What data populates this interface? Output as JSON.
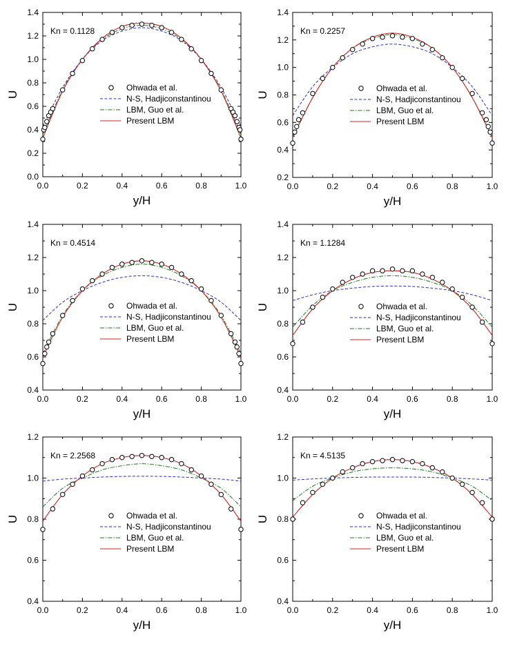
{
  "figure": {
    "legend_entries": [
      "Ohwada et al.",
      "N-S, Hadjiconstantinou",
      "LBM, Guo et al.",
      "Present LBM"
    ],
    "xlabel": "y/H",
    "ylabel": "U"
  },
  "colors": {
    "ohwada": "#000000",
    "ns": "#2a2ad0",
    "guo": "#1a7a1a",
    "present": "#d42020",
    "axis": "#000000"
  },
  "chart_data": [
    {
      "type": "line",
      "annotation": "Kn = 0.1128",
      "xlabel": "y/H",
      "ylabel": "U",
      "xlim": [
        0,
        1
      ],
      "ylim": [
        0,
        1.4
      ],
      "xticks": [
        "0.0",
        "0.2",
        "0.4",
        "0.6",
        "0.8",
        "1.0"
      ],
      "yticks": [
        "0.0",
        "0.2",
        "0.4",
        "0.6",
        "0.8",
        "1.0",
        "1.2",
        "1.4"
      ],
      "legend": "center",
      "grid": false,
      "series": [
        {
          "name": "Ohwada et al.",
          "style": "markers",
          "x": [
            0.0,
            0.005,
            0.01,
            0.02,
            0.03,
            0.04,
            0.05,
            0.1,
            0.15,
            0.2,
            0.25,
            0.3,
            0.35,
            0.4,
            0.45,
            0.5,
            0.55,
            0.6,
            0.65,
            0.7,
            0.75,
            0.8,
            0.85,
            0.9,
            0.95,
            0.96,
            0.97,
            0.98,
            0.99,
            0.995,
            1.0
          ],
          "y": [
            0.32,
            0.4,
            0.42,
            0.47,
            0.52,
            0.55,
            0.58,
            0.74,
            0.88,
            0.99,
            1.09,
            1.17,
            1.23,
            1.27,
            1.29,
            1.3,
            1.29,
            1.27,
            1.23,
            1.17,
            1.09,
            0.99,
            0.88,
            0.74,
            0.58,
            0.55,
            0.52,
            0.47,
            0.42,
            0.4,
            0.32
          ]
        },
        {
          "name": "N-S, Hadjiconstantinou",
          "style": "dashed",
          "x": [
            0.0,
            0.1,
            0.2,
            0.3,
            0.4,
            0.5,
            0.6,
            0.7,
            0.8,
            0.9,
            1.0
          ],
          "y": [
            0.43,
            0.76,
            1.0,
            1.16,
            1.24,
            1.27,
            1.24,
            1.16,
            1.0,
            0.76,
            0.43
          ]
        },
        {
          "name": "LBM, Guo et al.",
          "style": "dashdot",
          "x": [
            0.0,
            0.1,
            0.2,
            0.3,
            0.4,
            0.5,
            0.6,
            0.7,
            0.8,
            0.9,
            1.0
          ],
          "y": [
            0.36,
            0.74,
            1.0,
            1.17,
            1.26,
            1.29,
            1.26,
            1.17,
            1.0,
            0.74,
            0.36
          ]
        },
        {
          "name": "Present LBM",
          "style": "solid",
          "x": [
            0.0,
            0.1,
            0.2,
            0.3,
            0.4,
            0.5,
            0.6,
            0.7,
            0.8,
            0.9,
            1.0
          ],
          "y": [
            0.33,
            0.73,
            1.0,
            1.18,
            1.28,
            1.31,
            1.28,
            1.18,
            1.0,
            0.73,
            0.33
          ]
        }
      ]
    },
    {
      "type": "line",
      "annotation": "Kn = 0.2257",
      "xlabel": "y/H",
      "ylabel": "U",
      "xlim": [
        0,
        1
      ],
      "ylim": [
        0.2,
        1.4
      ],
      "xticks": [
        "0.0",
        "0.2",
        "0.4",
        "0.6",
        "0.8",
        "1.0"
      ],
      "yticks": [
        "0.2",
        "0.4",
        "0.6",
        "0.8",
        "1.0",
        "1.2",
        "1.4"
      ],
      "legend": "center",
      "grid": false,
      "series": [
        {
          "name": "Ohwada et al.",
          "style": "markers",
          "x": [
            0.0,
            0.01,
            0.02,
            0.03,
            0.05,
            0.1,
            0.15,
            0.2,
            0.25,
            0.3,
            0.35,
            0.4,
            0.45,
            0.5,
            0.55,
            0.6,
            0.65,
            0.7,
            0.75,
            0.8,
            0.85,
            0.9,
            0.95,
            0.97,
            0.98,
            0.99,
            1.0
          ],
          "y": [
            0.45,
            0.53,
            0.57,
            0.62,
            0.67,
            0.81,
            0.92,
            1.0,
            1.07,
            1.13,
            1.17,
            1.21,
            1.22,
            1.23,
            1.22,
            1.21,
            1.17,
            1.13,
            1.07,
            1.0,
            0.92,
            0.81,
            0.67,
            0.62,
            0.57,
            0.53,
            0.45
          ]
        },
        {
          "name": "N-S, Hadjiconstantinou",
          "style": "dashed",
          "x": [
            0.0,
            0.1,
            0.2,
            0.3,
            0.4,
            0.5,
            0.6,
            0.7,
            0.8,
            0.9,
            1.0
          ],
          "y": [
            0.65,
            0.86,
            1.0,
            1.1,
            1.15,
            1.17,
            1.15,
            1.1,
            1.0,
            0.86,
            0.65
          ]
        },
        {
          "name": "LBM, Guo et al.",
          "style": "dashdot",
          "x": [
            0.0,
            0.1,
            0.2,
            0.3,
            0.4,
            0.5,
            0.6,
            0.7,
            0.8,
            0.9,
            1.0
          ],
          "y": [
            0.5,
            0.78,
            1.0,
            1.14,
            1.21,
            1.24,
            1.21,
            1.14,
            1.0,
            0.78,
            0.5
          ]
        },
        {
          "name": "Present LBM",
          "style": "solid",
          "x": [
            0.0,
            0.1,
            0.2,
            0.3,
            0.4,
            0.5,
            0.6,
            0.7,
            0.8,
            0.9,
            1.0
          ],
          "y": [
            0.49,
            0.78,
            1.0,
            1.14,
            1.22,
            1.25,
            1.22,
            1.14,
            1.0,
            0.78,
            0.49
          ]
        }
      ]
    },
    {
      "type": "line",
      "annotation": "Kn = 0.4514",
      "xlabel": "y/H",
      "ylabel": "U",
      "xlim": [
        0,
        1
      ],
      "ylim": [
        0.4,
        1.4
      ],
      "xticks": [
        "0.0",
        "0.2",
        "0.4",
        "0.6",
        "0.8",
        "1.0"
      ],
      "yticks": [
        "0.4",
        "0.6",
        "0.8",
        "1.0",
        "1.2",
        "1.4"
      ],
      "legend": "center",
      "grid": false,
      "series": [
        {
          "name": "Ohwada et al.",
          "style": "markers",
          "x": [
            0.0,
            0.01,
            0.02,
            0.03,
            0.05,
            0.1,
            0.15,
            0.2,
            0.25,
            0.3,
            0.35,
            0.4,
            0.45,
            0.5,
            0.55,
            0.6,
            0.65,
            0.7,
            0.75,
            0.8,
            0.85,
            0.9,
            0.95,
            0.97,
            0.98,
            0.99,
            1.0
          ],
          "y": [
            0.56,
            0.62,
            0.66,
            0.69,
            0.74,
            0.85,
            0.94,
            1.01,
            1.06,
            1.1,
            1.14,
            1.16,
            1.17,
            1.18,
            1.17,
            1.16,
            1.14,
            1.1,
            1.06,
            1.01,
            0.94,
            0.85,
            0.74,
            0.69,
            0.66,
            0.62,
            0.56
          ]
        },
        {
          "name": "N-S, Hadjiconstantinou",
          "style": "dashed",
          "x": [
            0.0,
            0.1,
            0.2,
            0.3,
            0.4,
            0.5,
            0.6,
            0.7,
            0.8,
            0.9,
            1.0
          ],
          "y": [
            0.82,
            0.93,
            1.0,
            1.05,
            1.08,
            1.09,
            1.08,
            1.05,
            1.0,
            0.93,
            0.82
          ]
        },
        {
          "name": "LBM, Guo et al.",
          "style": "dashdot",
          "x": [
            0.0,
            0.1,
            0.2,
            0.3,
            0.4,
            0.5,
            0.6,
            0.7,
            0.8,
            0.9,
            1.0
          ],
          "y": [
            0.62,
            0.85,
            1.0,
            1.09,
            1.14,
            1.16,
            1.14,
            1.09,
            1.0,
            0.85,
            0.62
          ]
        },
        {
          "name": "Present LBM",
          "style": "solid",
          "x": [
            0.0,
            0.1,
            0.2,
            0.3,
            0.4,
            0.5,
            0.6,
            0.7,
            0.8,
            0.9,
            1.0
          ],
          "y": [
            0.6,
            0.84,
            1.0,
            1.1,
            1.16,
            1.18,
            1.16,
            1.1,
            1.0,
            0.84,
            0.6
          ]
        }
      ]
    },
    {
      "type": "line",
      "annotation": "Kn = 1.1284",
      "xlabel": "y/H",
      "ylabel": "U",
      "xlim": [
        0,
        1
      ],
      "ylim": [
        0.4,
        1.4
      ],
      "xticks": [
        "0.0",
        "0.2",
        "0.4",
        "0.6",
        "0.8",
        "1.0"
      ],
      "yticks": [
        "0.4",
        "0.6",
        "0.8",
        "1.0",
        "1.2",
        "1.4"
      ],
      "legend": "center",
      "grid": false,
      "series": [
        {
          "name": "Ohwada et al.",
          "style": "markers",
          "x": [
            0.0,
            0.05,
            0.1,
            0.15,
            0.2,
            0.25,
            0.3,
            0.35,
            0.4,
            0.45,
            0.5,
            0.55,
            0.6,
            0.65,
            0.7,
            0.75,
            0.8,
            0.85,
            0.9,
            0.95,
            1.0
          ],
          "y": [
            0.68,
            0.81,
            0.9,
            0.96,
            1.01,
            1.05,
            1.08,
            1.1,
            1.12,
            1.12,
            1.13,
            1.12,
            1.12,
            1.1,
            1.08,
            1.05,
            1.01,
            0.96,
            0.9,
            0.81,
            0.68
          ]
        },
        {
          "name": "N-S, Hadjiconstantinou",
          "style": "dashed",
          "x": [
            0.0,
            0.1,
            0.2,
            0.3,
            0.4,
            0.5,
            0.6,
            0.7,
            0.8,
            0.9,
            1.0
          ],
          "y": [
            0.94,
            0.975,
            1.0,
            1.015,
            1.025,
            1.028,
            1.025,
            1.015,
            1.0,
            0.975,
            0.94
          ]
        },
        {
          "name": "LBM, Guo et al.",
          "style": "dashdot",
          "x": [
            0.0,
            0.1,
            0.2,
            0.3,
            0.4,
            0.5,
            0.6,
            0.7,
            0.8,
            0.9,
            1.0
          ],
          "y": [
            0.78,
            0.91,
            1.0,
            1.05,
            1.08,
            1.09,
            1.08,
            1.05,
            1.0,
            0.91,
            0.78
          ]
        },
        {
          "name": "Present LBM",
          "style": "solid",
          "x": [
            0.0,
            0.1,
            0.2,
            0.3,
            0.4,
            0.5,
            0.6,
            0.7,
            0.8,
            0.9,
            1.0
          ],
          "y": [
            0.73,
            0.89,
            1.0,
            1.07,
            1.11,
            1.12,
            1.11,
            1.07,
            1.0,
            0.89,
            0.73
          ]
        }
      ]
    },
    {
      "type": "line",
      "annotation": "Kn = 2.2568",
      "xlabel": "y/H",
      "ylabel": "U",
      "xlim": [
        0,
        1
      ],
      "ylim": [
        0.4,
        1.2
      ],
      "xticks": [
        "0.0",
        "0.2",
        "0.4",
        "0.6",
        "0.8",
        "1.0"
      ],
      "yticks": [
        "0.4",
        "0.6",
        "0.8",
        "1.0",
        "1.2"
      ],
      "legend": "center",
      "grid": false,
      "series": [
        {
          "name": "Ohwada et al.",
          "style": "markers",
          "x": [
            0.0,
            0.05,
            0.1,
            0.15,
            0.2,
            0.25,
            0.3,
            0.35,
            0.4,
            0.45,
            0.5,
            0.55,
            0.6,
            0.65,
            0.7,
            0.75,
            0.8,
            0.85,
            0.9,
            0.95,
            1.0
          ],
          "y": [
            0.75,
            0.85,
            0.92,
            0.97,
            1.01,
            1.04,
            1.07,
            1.09,
            1.1,
            1.105,
            1.11,
            1.105,
            1.1,
            1.09,
            1.07,
            1.04,
            1.01,
            0.97,
            0.92,
            0.85,
            0.75
          ]
        },
        {
          "name": "N-S, Hadjiconstantinou",
          "style": "dashed",
          "x": [
            0.0,
            0.1,
            0.2,
            0.3,
            0.4,
            0.5,
            0.6,
            0.7,
            0.8,
            0.9,
            1.0
          ],
          "y": [
            0.985,
            0.995,
            1.0,
            1.005,
            1.008,
            1.009,
            1.008,
            1.005,
            1.0,
            0.995,
            0.985
          ]
        },
        {
          "name": "LBM, Guo et al.",
          "style": "dashdot",
          "x": [
            0.0,
            0.1,
            0.2,
            0.3,
            0.4,
            0.5,
            0.6,
            0.7,
            0.8,
            0.9,
            1.0
          ],
          "y": [
            0.86,
            0.95,
            1.0,
            1.04,
            1.06,
            1.07,
            1.06,
            1.04,
            1.0,
            0.95,
            0.86
          ]
        },
        {
          "name": "Present LBM",
          "style": "solid",
          "x": [
            0.0,
            0.1,
            0.2,
            0.3,
            0.4,
            0.5,
            0.6,
            0.7,
            0.8,
            0.9,
            1.0
          ],
          "y": [
            0.79,
            0.92,
            1.01,
            1.07,
            1.1,
            1.11,
            1.1,
            1.07,
            1.01,
            0.92,
            0.79
          ]
        }
      ]
    },
    {
      "type": "line",
      "annotation": "Kn = 4.5135",
      "xlabel": "y/H",
      "ylabel": "U",
      "xlim": [
        0,
        1
      ],
      "ylim": [
        0.4,
        1.2
      ],
      "xticks": [
        "0.0",
        "0.2",
        "0.4",
        "0.6",
        "0.8",
        "1.0"
      ],
      "yticks": [
        "0.4",
        "0.6",
        "0.8",
        "1.0",
        "1.2"
      ],
      "legend": "center",
      "grid": false,
      "series": [
        {
          "name": "Ohwada et al.",
          "style": "markers",
          "x": [
            0.0,
            0.05,
            0.1,
            0.15,
            0.2,
            0.25,
            0.3,
            0.35,
            0.4,
            0.45,
            0.5,
            0.55,
            0.6,
            0.65,
            0.7,
            0.75,
            0.8,
            0.85,
            0.9,
            0.95,
            1.0
          ],
          "y": [
            0.8,
            0.88,
            0.93,
            0.97,
            1.0,
            1.03,
            1.05,
            1.07,
            1.08,
            1.085,
            1.09,
            1.085,
            1.08,
            1.07,
            1.05,
            1.03,
            1.0,
            0.97,
            0.93,
            0.88,
            0.8
          ]
        },
        {
          "name": "N-S, Hadjiconstantinou",
          "style": "dashed",
          "x": [
            0.0,
            0.1,
            0.2,
            0.3,
            0.4,
            0.5,
            0.6,
            0.7,
            0.8,
            0.9,
            1.0
          ],
          "y": [
            0.99,
            0.996,
            1.0,
            1.003,
            1.005,
            1.005,
            1.005,
            1.003,
            1.0,
            0.996,
            0.99
          ]
        },
        {
          "name": "LBM, Guo et al.",
          "style": "dashdot",
          "x": [
            0.0,
            0.1,
            0.2,
            0.3,
            0.4,
            0.5,
            0.6,
            0.7,
            0.8,
            0.9,
            1.0
          ],
          "y": [
            0.89,
            0.96,
            1.0,
            1.03,
            1.045,
            1.05,
            1.045,
            1.03,
            1.0,
            0.96,
            0.89
          ]
        },
        {
          "name": "Present LBM",
          "style": "solid",
          "x": [
            0.0,
            0.1,
            0.2,
            0.3,
            0.4,
            0.5,
            0.6,
            0.7,
            0.8,
            0.9,
            1.0
          ],
          "y": [
            0.81,
            0.92,
            1.0,
            1.05,
            1.08,
            1.09,
            1.08,
            1.05,
            1.0,
            0.92,
            0.81
          ]
        }
      ]
    }
  ]
}
